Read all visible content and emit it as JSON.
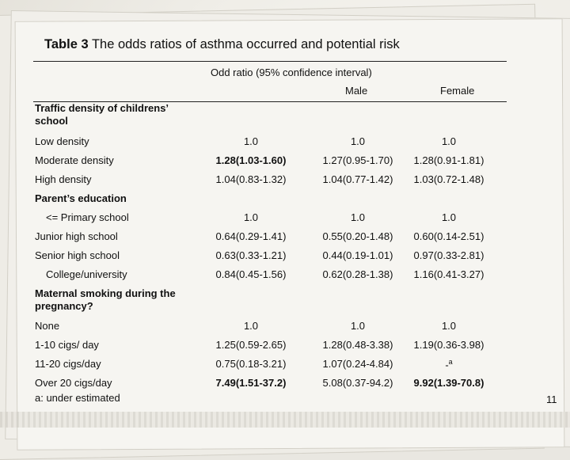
{
  "title_prefix": "Table 3",
  "title_text": "The odds ratios of asthma occurred and potential risk",
  "header": {
    "group": "Odd ratio (95% confidence interval)",
    "col_male": "Male",
    "col_female": "Female"
  },
  "sections": {
    "traffic": "Traffic density of childrens’ school",
    "traffic_line1": "Traffic density of childrens’",
    "traffic_line2": "school",
    "parent": "Parent’s education",
    "smoking_line1": "Maternal smoking during the",
    "smoking_line2": "pregnancy?"
  },
  "rows": {
    "r1": {
      "label": "Low density",
      "v1": "1.0",
      "v2": "1.0",
      "v3": "1.0"
    },
    "r2": {
      "label": "Moderate density",
      "v1": "1.28(1.03-1.60)",
      "v2": "1.27(0.95-1.70)",
      "v3": "1.28(0.91-1.81)"
    },
    "r3": {
      "label": "High density",
      "v1": "1.04(0.83-1.32)",
      "v2": "1.04(0.77-1.42)",
      "v3": "1.03(0.72-1.48)"
    },
    "r4": {
      "label": "<= Primary school",
      "v1": "1.0",
      "v2": "1.0",
      "v3": "1.0"
    },
    "r5": {
      "label": "Junior high school",
      "v1": "0.64(0.29-1.41)",
      "v2": "0.55(0.20-1.48)",
      "v3": "0.60(0.14-2.51)"
    },
    "r6": {
      "label": "Senior high school",
      "v1": "0.63(0.33-1.21)",
      "v2": "0.44(0.19-1.01)",
      "v3": "0.97(0.33-2.81)"
    },
    "r7": {
      "label": "College/university",
      "v1": "0.84(0.45-1.56)",
      "v2": "0.62(0.28-1.38)",
      "v3": "1.16(0.41-3.27)"
    },
    "r8": {
      "label": "None",
      "v1": "1.0",
      "v2": "1.0",
      "v3": "1.0"
    },
    "r9": {
      "label": "1-10 cigs/ day",
      "v1": "1.25(0.59-2.65)",
      "v2": "1.28(0.48-3.38)",
      "v3": "1.19(0.36-3.98)"
    },
    "r10": {
      "label": "11-20 cigs/day",
      "v1": "0.75(0.18-3.21)",
      "v2": "1.07(0.24-4.84)",
      "v3_dash": "-",
      "v3_sup": "a"
    },
    "r11": {
      "label": "Over 20 cigs/day",
      "v1": "7.49(1.51-37.2)",
      "v2": "5.08(0.37-94.2)",
      "v3": "9.92(1.39-70.8)"
    }
  },
  "footnote": "a: under estimated",
  "page_number": "11"
}
